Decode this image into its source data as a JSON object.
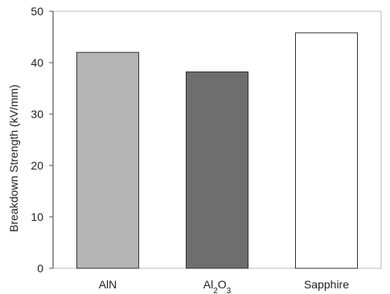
{
  "chart_data": {
    "type": "bar",
    "title": "",
    "xlabel": "",
    "ylabel": "Breakdown Strength (kV/mm)",
    "ylim": [
      0,
      50
    ],
    "yticks": [
      0,
      10,
      20,
      30,
      40,
      50
    ],
    "grid": false,
    "categories": [
      "AlN",
      "Al2O3",
      "Sapphire"
    ],
    "values": [
      42,
      38.2,
      45.8
    ],
    "bar_colors": [
      "#b4b4b4",
      "#6e6e6e",
      "#ffffff"
    ],
    "bar_edge_color": "#333333"
  }
}
